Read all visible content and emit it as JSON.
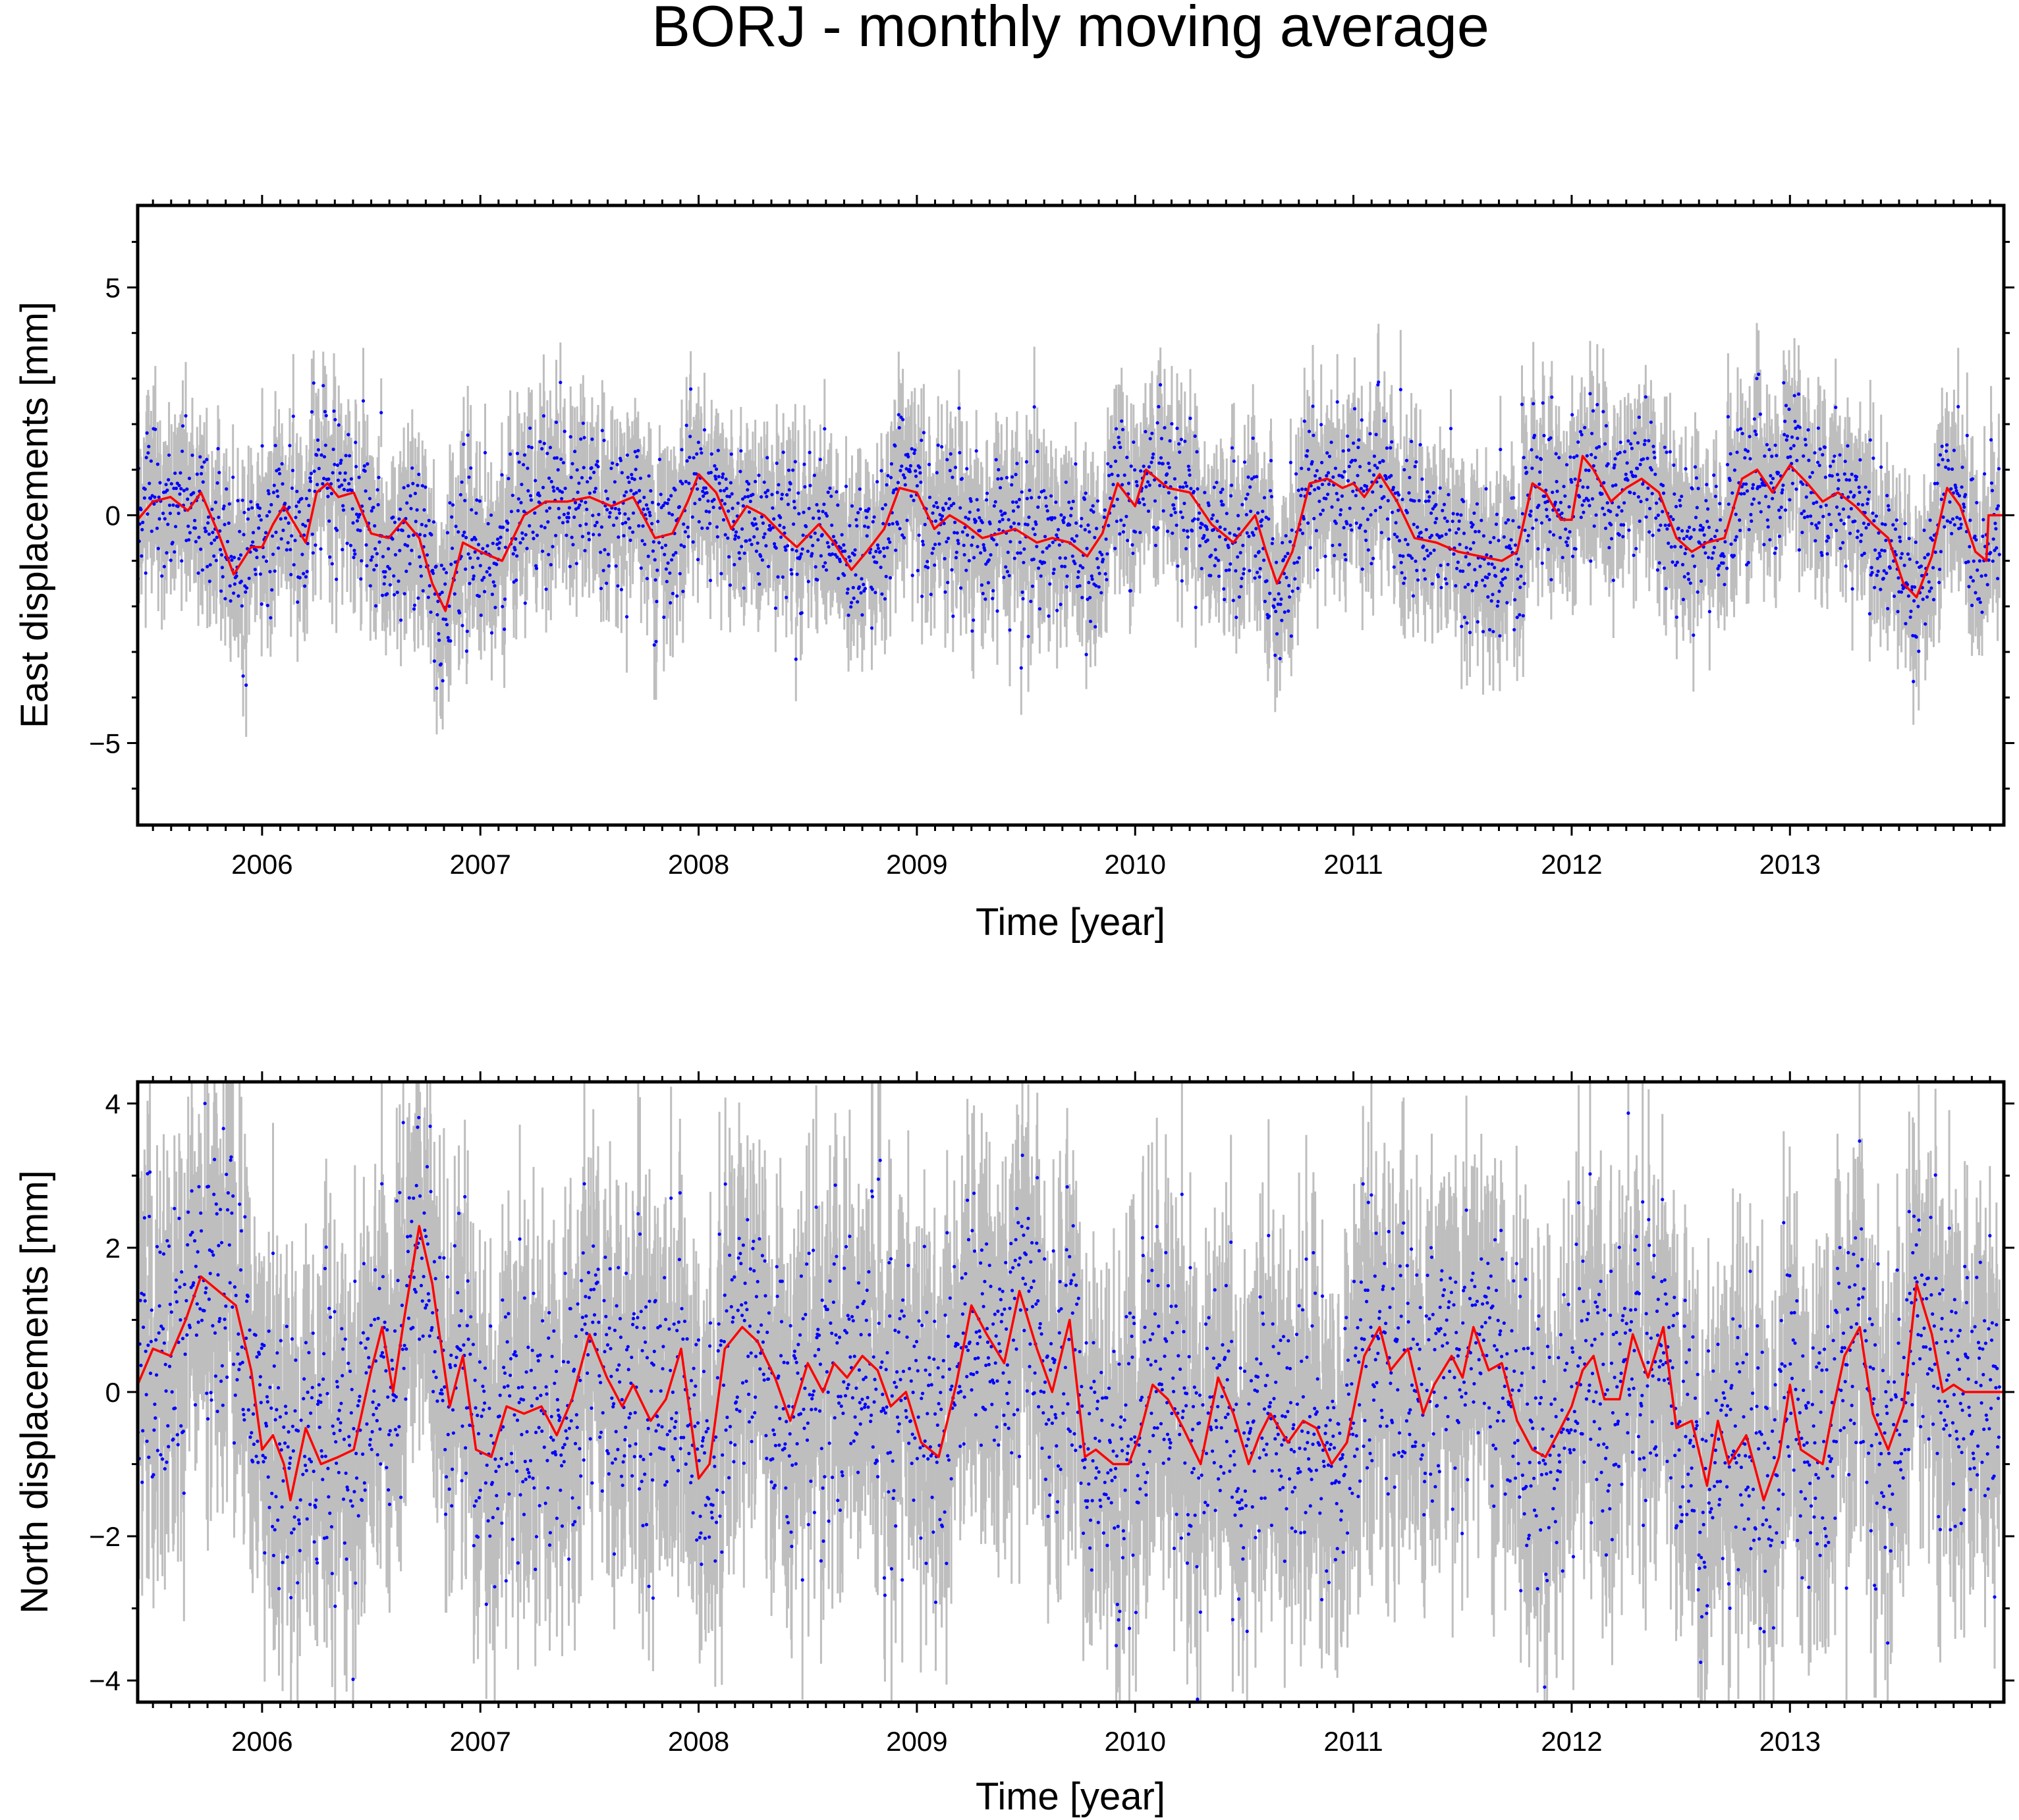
{
  "title": "BORJ - monthly moving average",
  "colors": {
    "errorbar": "#bebebe",
    "points": "#0000ff",
    "moving_average": "#ff0000",
    "frame": "#000000"
  },
  "chart_data": [
    {
      "type": "scatter",
      "title": "",
      "xlabel": "Time [year]",
      "ylabel": "East displacements [mm]",
      "xlim": [
        2005.43,
        2013.98
      ],
      "ylim": [
        -6.8,
        6.8
      ],
      "xticks": [
        2006,
        2007,
        2008,
        2009,
        2010,
        2011,
        2012,
        2013
      ],
      "xtick_labels": [
        "2006",
        "2007",
        "2008",
        "2009",
        "2010",
        "2011",
        "2012",
        "2013"
      ],
      "yticks": [
        -5,
        0,
        5
      ],
      "ytick_labels": [
        "−5",
        "0",
        "5"
      ],
      "grid": false,
      "legend": "none",
      "series": [
        {
          "style": "daily points with grey error bars",
          "noise_sd": 0.85,
          "sigma_mm": [
            0.7,
            1.4
          ]
        },
        {
          "style": "red line (monthly moving average)",
          "x": [
            2005.43,
            2005.5,
            2005.58,
            2005.66,
            2005.72,
            2005.8,
            2005.87,
            2005.95,
            2006.0,
            2006.05,
            2006.1,
            2006.15,
            2006.2,
            2006.25,
            2006.3,
            2006.35,
            2006.42,
            2006.5,
            2006.58,
            2006.65,
            2006.72,
            2006.78,
            2006.84,
            2006.92,
            2007.0,
            2007.1,
            2007.2,
            2007.3,
            2007.4,
            2007.5,
            2007.6,
            2007.7,
            2007.8,
            2007.88,
            2007.95,
            2008.0,
            2008.08,
            2008.15,
            2008.22,
            2008.3,
            2008.38,
            2008.45,
            2008.55,
            2008.62,
            2008.7,
            2008.77,
            2008.85,
            2008.92,
            2009.0,
            2009.08,
            2009.15,
            2009.22,
            2009.3,
            2009.38,
            2009.45,
            2009.55,
            2009.62,
            2009.7,
            2009.78,
            2009.85,
            2009.92,
            2010.0,
            2010.05,
            2010.15,
            2010.25,
            2010.35,
            2010.45,
            2010.55,
            2010.6,
            2010.65,
            2010.72,
            2010.8,
            2010.88,
            2010.95,
            2011.0,
            2011.05,
            2011.12,
            2011.2,
            2011.28,
            2011.38,
            2011.48,
            2011.58,
            2011.68,
            2011.75,
            2011.82,
            2011.88,
            2011.95,
            2012.0,
            2012.05,
            2012.1,
            2012.18,
            2012.25,
            2012.32,
            2012.4,
            2012.48,
            2012.55,
            2012.62,
            2012.7,
            2012.78,
            2012.85,
            2012.92,
            2013.0,
            2013.08,
            2013.15,
            2013.22,
            2013.3,
            2013.38,
            2013.45,
            2013.52,
            2013.58,
            2013.65,
            2013.72,
            2013.78,
            2013.85,
            2013.9,
            2013.91,
            2013.98
          ],
          "y": [
            -0.1,
            0.3,
            0.4,
            0.1,
            0.5,
            -0.4,
            -1.3,
            -0.7,
            -0.7,
            -0.2,
            0.2,
            -0.2,
            -0.6,
            0.5,
            0.7,
            0.4,
            0.5,
            -0.4,
            -0.5,
            -0.1,
            -0.5,
            -1.5,
            -2.1,
            -0.6,
            -0.8,
            -1.0,
            0.0,
            0.3,
            0.3,
            0.4,
            0.2,
            0.4,
            -0.5,
            -0.4,
            0.3,
            0.9,
            0.5,
            -0.3,
            0.2,
            0.0,
            -0.4,
            -0.7,
            -0.2,
            -0.6,
            -1.2,
            -0.8,
            -0.3,
            0.6,
            0.5,
            -0.3,
            0.0,
            -0.2,
            -0.5,
            -0.4,
            -0.3,
            -0.6,
            -0.5,
            -0.6,
            -0.9,
            -0.4,
            0.7,
            0.2,
            1.0,
            0.6,
            0.5,
            -0.2,
            -0.6,
            0.0,
            -0.8,
            -1.5,
            -0.8,
            0.7,
            0.8,
            0.6,
            0.7,
            0.4,
            0.9,
            0.3,
            -0.5,
            -0.6,
            -0.8,
            -0.9,
            -1.0,
            -0.8,
            0.7,
            0.5,
            -0.1,
            -0.1,
            1.3,
            1.0,
            0.3,
            0.6,
            0.8,
            0.5,
            -0.5,
            -0.8,
            -0.6,
            -0.5,
            0.8,
            1.0,
            0.5,
            1.1,
            0.7,
            0.3,
            0.5,
            0.2,
            -0.2,
            -0.5,
            -1.5,
            -1.8,
            -0.9,
            0.6,
            0.2,
            -0.8,
            -1.0,
            0.0,
            0.0
          ]
        }
      ]
    },
    {
      "type": "scatter",
      "title": "",
      "xlabel": "Time [year]",
      "ylabel": "North displacements [mm]",
      "xlim": [
        2005.43,
        2013.98
      ],
      "ylim": [
        -4.3,
        4.3
      ],
      "xticks": [
        2006,
        2007,
        2008,
        2009,
        2010,
        2011,
        2012,
        2013
      ],
      "xtick_labels": [
        "2006",
        "2007",
        "2008",
        "2009",
        "2010",
        "2011",
        "2012",
        "2013"
      ],
      "yticks": [
        -4,
        -2,
        0,
        2,
        4
      ],
      "ytick_labels": [
        "−4",
        "−2",
        "0",
        "2",
        "4"
      ],
      "grid": false,
      "legend": "none",
      "series": [
        {
          "style": "daily points with grey error bars",
          "noise_sd": 1.0,
          "sigma_mm": [
            0.9,
            1.9
          ]
        },
        {
          "style": "red line (monthly moving average)",
          "x": [
            2005.43,
            2005.5,
            2005.58,
            2005.65,
            2005.72,
            2005.8,
            2005.88,
            2005.95,
            2006.0,
            2006.05,
            2006.1,
            2006.13,
            2006.2,
            2006.27,
            2006.35,
            2006.42,
            2006.5,
            2006.55,
            2006.6,
            2006.65,
            2006.72,
            2006.78,
            2006.86,
            2006.92,
            2006.98,
            2007.05,
            2007.12,
            2007.2,
            2007.28,
            2007.35,
            2007.42,
            2007.5,
            2007.58,
            2007.65,
            2007.7,
            2007.78,
            2007.85,
            2007.92,
            2008.0,
            2008.05,
            2008.12,
            2008.2,
            2008.27,
            2008.35,
            2008.42,
            2008.5,
            2008.57,
            2008.62,
            2008.68,
            2008.75,
            2008.82,
            2008.88,
            2008.95,
            2009.02,
            2009.1,
            2009.18,
            2009.25,
            2009.32,
            2009.4,
            2009.47,
            2009.55,
            2009.62,
            2009.7,
            2009.77,
            2009.82,
            2009.9,
            2009.97,
            2010.02,
            2010.08,
            2010.15,
            2010.22,
            2010.3,
            2010.38,
            2010.45,
            2010.52,
            2010.57,
            2010.62,
            2010.7,
            2010.77,
            2010.83,
            2010.9,
            2010.97,
            2011.05,
            2011.12,
            2011.17,
            2011.25,
            2011.32,
            2011.37,
            2011.45,
            2011.5,
            2011.55,
            2011.62,
            2011.68,
            2011.75,
            2011.82,
            2011.88,
            2011.95,
            2012.0,
            2012.05,
            2012.1,
            2012.15,
            2012.22,
            2012.28,
            2012.35,
            2012.42,
            2012.48,
            2012.55,
            2012.62,
            2012.67,
            2012.72,
            2012.8,
            2012.88,
            2012.95,
            2013.0,
            2013.05,
            2013.1,
            2013.15,
            2013.2,
            2013.25,
            2013.32,
            2013.38,
            2013.45,
            2013.52,
            2013.58,
            2013.65,
            2013.7,
            2013.75,
            2013.8,
            2013.85,
            2013.9,
            2013.91,
            2013.98
          ],
          "y": [
            0.1,
            0.6,
            0.5,
            1.0,
            1.6,
            1.4,
            1.2,
            0.3,
            -0.8,
            -0.6,
            -1.0,
            -1.5,
            -0.5,
            -1.0,
            -0.9,
            -0.8,
            0.3,
            0.9,
            0.0,
            1.0,
            2.3,
            1.5,
            -0.2,
            0.5,
            -0.8,
            -0.9,
            -0.2,
            -0.3,
            -0.2,
            -0.6,
            -0.1,
            0.8,
            0.2,
            -0.2,
            0.1,
            -0.4,
            -0.1,
            0.6,
            -1.2,
            -1.0,
            0.6,
            0.9,
            0.7,
            0.2,
            -0.4,
            0.4,
            0.0,
            0.4,
            0.2,
            0.5,
            0.3,
            -0.2,
            0.0,
            -0.7,
            -0.9,
            0.1,
            1.2,
            0.8,
            0.4,
            1.4,
            0.6,
            0.0,
            1.0,
            -0.9,
            -0.8,
            -1.0,
            -1.0,
            -0.6,
            0.1,
            -0.1,
            -0.5,
            -1.0,
            0.2,
            -0.3,
            -1.0,
            -0.6,
            -0.3,
            -0.7,
            -0.4,
            -0.5,
            -1.0,
            -0.7,
            0.5,
            0.9,
            0.3,
            0.6,
            -0.3,
            0.1,
            0.5,
            0.2,
            0.9,
            0.3,
            0.4,
            -0.4,
            -0.8,
            -0.9,
            -0.5,
            -0.2,
            0.3,
            0.5,
            -0.1,
            -0.1,
            0.8,
            0.2,
            0.9,
            -0.5,
            -0.4,
            -1.3,
            -0.4,
            -1.0,
            -0.6,
            -1.5,
            -0.9,
            0.1,
            -0.8,
            -0.9,
            -1.0,
            -0.2,
            0.5,
            0.9,
            -0.3,
            -0.8,
            -0.2,
            1.5,
            0.8,
            0.0,
            0.1,
            0.0,
            0.0,
            0.0,
            0.0,
            0.0
          ]
        }
      ]
    }
  ]
}
